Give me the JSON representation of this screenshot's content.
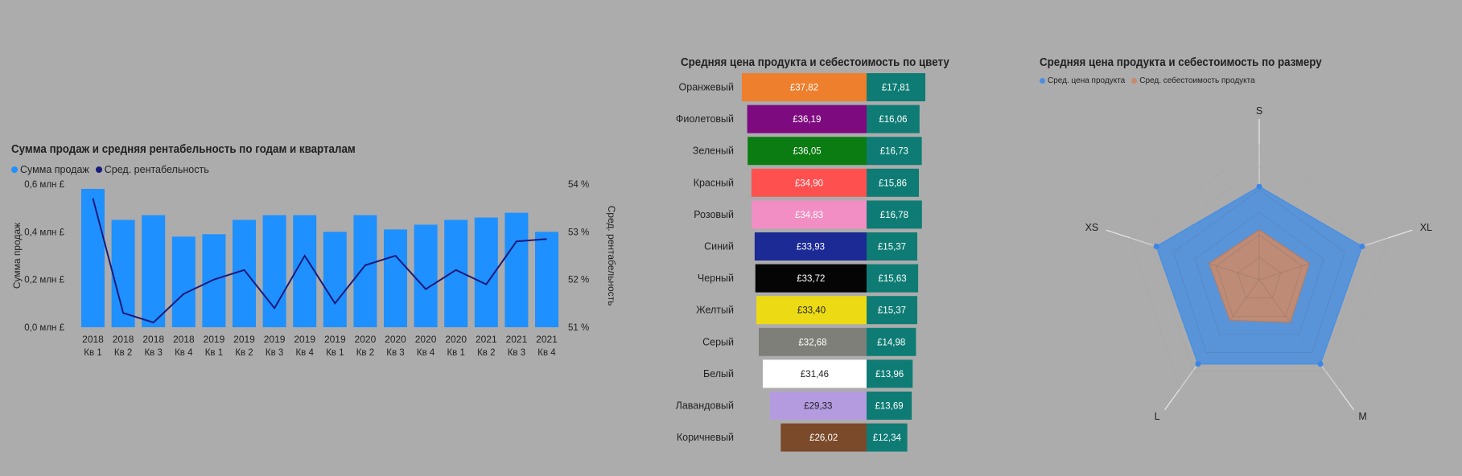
{
  "colors": {
    "background": "#acacac",
    "bar_blue": "#1e90ff",
    "line_navy": "#1a1a7a",
    "cost_teal": "#0e7c74",
    "radar_price": "#4a8fe0",
    "radar_cost": "#c88a6a"
  },
  "chart_data": [
    {
      "type": "bar",
      "title": "Сумма продаж и средняя рентабельность по годам и кварталам",
      "legend": [
        {
          "label": "Сумма продаж",
          "color": "#1e90ff"
        },
        {
          "label": "Сред. рентабельность",
          "color": "#1a1a7a"
        }
      ],
      "legend_placement": "top-left",
      "ylabel": "Сумма продаж",
      "y2label": "Сред. рентабельность",
      "y_ticks": [
        "0,0 млн £",
        "0,2 млн £",
        "0,4 млн £",
        "0,6 млн £"
      ],
      "y_tick_values": [
        0,
        0.2,
        0.4,
        0.6
      ],
      "ylim": [
        0,
        0.6
      ],
      "y2_ticks": [
        "51 %",
        "52 %",
        "53 %",
        "54 %"
      ],
      "y2_tick_values": [
        51,
        52,
        53,
        54
      ],
      "y2lim": [
        51,
        54
      ],
      "x_years": [
        "2018",
        "2018",
        "2018",
        "2018",
        "2019",
        "2019",
        "2019",
        "2019",
        "2019",
        "2020",
        "2020",
        "2020",
        "2020",
        "2021",
        "2021",
        "2021"
      ],
      "x_quarters": [
        "Кв 1",
        "Кв 2",
        "Кв 3",
        "Кв 4",
        "Кв 1",
        "Кв 2",
        "Кв 3",
        "Кв 4",
        "Кв 1",
        "Кв 2",
        "Кв 3",
        "Кв 4",
        "Кв 1",
        "Кв 2",
        "Кв 3",
        "Кв 4"
      ],
      "series": [
        {
          "name": "Сумма продаж",
          "kind": "bar",
          "values": [
            0.58,
            0.45,
            0.47,
            0.38,
            0.39,
            0.45,
            0.47,
            0.47,
            0.4,
            0.47,
            0.41,
            0.43,
            0.45,
            0.46,
            0.48,
            0.4
          ]
        },
        {
          "name": "Сред. рентабельность",
          "kind": "line",
          "axis": "y2",
          "values": [
            53.7,
            51.3,
            51.1,
            51.7,
            52.0,
            52.2,
            51.4,
            52.5,
            51.5,
            52.3,
            52.5,
            51.8,
            52.2,
            51.9,
            52.8,
            52.85
          ]
        }
      ],
      "grid": false
    },
    {
      "type": "bar",
      "orientation": "horizontal",
      "title": "Средняя цена продукта и себестоимость по цвету",
      "categories": [
        "Оранжевый",
        "Фиолетовый",
        "Зеленый",
        "Красный",
        "Розовый",
        "Синий",
        "Черный",
        "Желтый",
        "Серый",
        "Белый",
        "Лавандовый",
        "Коричневый"
      ],
      "price_labels": [
        "£37,82",
        "£36,19",
        "£36,05",
        "£34,90",
        "£34,83",
        "£33,93",
        "£33,72",
        "£33,40",
        "£32,68",
        "£31,46",
        "£29,33",
        "£26,02"
      ],
      "cost_labels": [
        "£17,81",
        "£16,06",
        "£16,73",
        "£15,86",
        "£16,78",
        "£15,37",
        "£15,63",
        "£15,37",
        "£14,98",
        "£13,96",
        "£13,69",
        "£12,34"
      ],
      "price_values": [
        37.82,
        36.19,
        36.05,
        34.9,
        34.83,
        33.93,
        33.72,
        33.4,
        32.68,
        31.46,
        29.33,
        26.02
      ],
      "cost_values": [
        17.81,
        16.06,
        16.73,
        15.86,
        16.78,
        15.37,
        15.63,
        15.37,
        14.98,
        13.96,
        13.69,
        12.34
      ],
      "price_colors": [
        "#ee7f2d",
        "#7d0a7f",
        "#0a7c12",
        "#ff5050",
        "#f28ec4",
        "#1b2a94",
        "#050505",
        "#ecdb14",
        "#7f7f7a",
        "#ffffff",
        "#b49be0",
        "#7a4a2a"
      ],
      "price_text_colors": [
        "#ffffff",
        "#ffffff",
        "#ffffff",
        "#ffffff",
        "#ffffff",
        "#ffffff",
        "#ffffff",
        "#222222",
        "#ffffff",
        "#222222",
        "#222222",
        "#ffffff"
      ],
      "cost_color": "#0e7c74"
    },
    {
      "type": "radar",
      "title": "Средняя цена продукта и себестоимость по размеру",
      "legend": [
        {
          "label": "Сред. цена продукта",
          "color": "#4a8fe0"
        },
        {
          "label": "Сред. себестоимость продукта",
          "color": "#c88a6a"
        }
      ],
      "legend_placement": "top-left",
      "categories": [
        "S",
        "XL",
        "M",
        "L",
        "XS"
      ],
      "series": [
        {
          "name": "Сред. цена продукта",
          "values": [
            0.69,
            0.8,
            0.77,
            0.77,
            0.8
          ]
        },
        {
          "name": "Сред. себестоимость продукта",
          "values": [
            0.37,
            0.39,
            0.39,
            0.37,
            0.39
          ]
        }
      ],
      "rlim": [
        0,
        1
      ]
    }
  ]
}
